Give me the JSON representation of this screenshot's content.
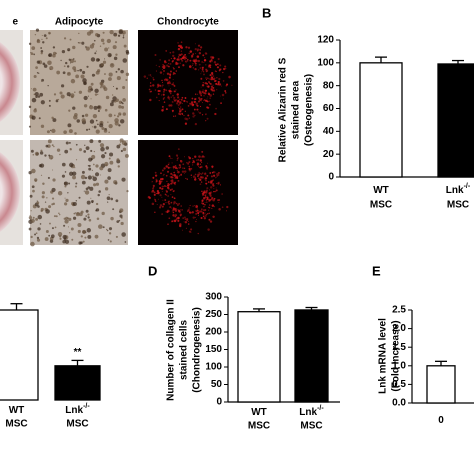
{
  "images": {
    "column_titles": [
      "e",
      "Adipocyte",
      "Chondrocyte"
    ]
  },
  "chart_data": [
    {
      "type": "bar",
      "label": "B",
      "ylabel": [
        "Relative Alizarin red S",
        "stained area",
        "(Osteogenesis)"
      ],
      "categories": [
        {
          "text": "WT",
          "sub": "MSC"
        },
        {
          "text": "Lnk",
          "sup": "-/-",
          "sub": "MSC"
        }
      ],
      "values": [
        100,
        99
      ],
      "errors": [
        5,
        3
      ],
      "colors": [
        "#ffffff",
        "#000000"
      ],
      "ylim": [
        0,
        120
      ],
      "yticks": [
        0,
        20,
        40,
        60,
        80,
        100,
        120
      ]
    },
    {
      "type": "bar",
      "categories": [
        {
          "text": "WT",
          "sub": "MSC"
        },
        {
          "text": "Lnk",
          "sup": "-/-",
          "sub": "MSC"
        }
      ],
      "values": [
        100,
        38
      ],
      "errors": [
        7,
        6
      ],
      "colors": [
        "#ffffff",
        "#000000"
      ],
      "ylim": [
        0,
        110
      ],
      "annotations": [
        {
          "text": "**",
          "index": 1
        }
      ]
    },
    {
      "type": "bar",
      "label": "D",
      "ylabel": [
        "Number of collagen II",
        "stained cells",
        "(Chondrogenesis)"
      ],
      "categories": [
        {
          "text": "WT",
          "sub": "MSC"
        },
        {
          "text": "Lnk",
          "sup": "-/-",
          "sub": "MSC"
        }
      ],
      "values": [
        258,
        263
      ],
      "errors": [
        8,
        7
      ],
      "colors": [
        "#ffffff",
        "#000000"
      ],
      "ylim": [
        0,
        300
      ],
      "yticks": [
        0,
        50,
        100,
        150,
        200,
        250,
        300
      ]
    },
    {
      "type": "bar",
      "label": "E",
      "ylabel": [
        "Lnk mRNA level",
        "(Fold Increase)"
      ],
      "categories": [
        {
          "text": "0"
        }
      ],
      "values": [
        1.0
      ],
      "errors": [
        0.12
      ],
      "colors": [
        "#ffffff"
      ],
      "ylim": [
        0,
        2.5
      ],
      "yticks": [
        {
          "value": 0,
          "label": "0.0"
        },
        {
          "value": 0.5,
          "label": "0.5"
        },
        {
          "value": 1,
          "label": "1.0"
        },
        {
          "value": 1.5,
          "label": "1.5"
        },
        {
          "value": 2,
          "label": "2.0"
        },
        {
          "value": 2.5,
          "label": "2.5"
        }
      ]
    }
  ]
}
